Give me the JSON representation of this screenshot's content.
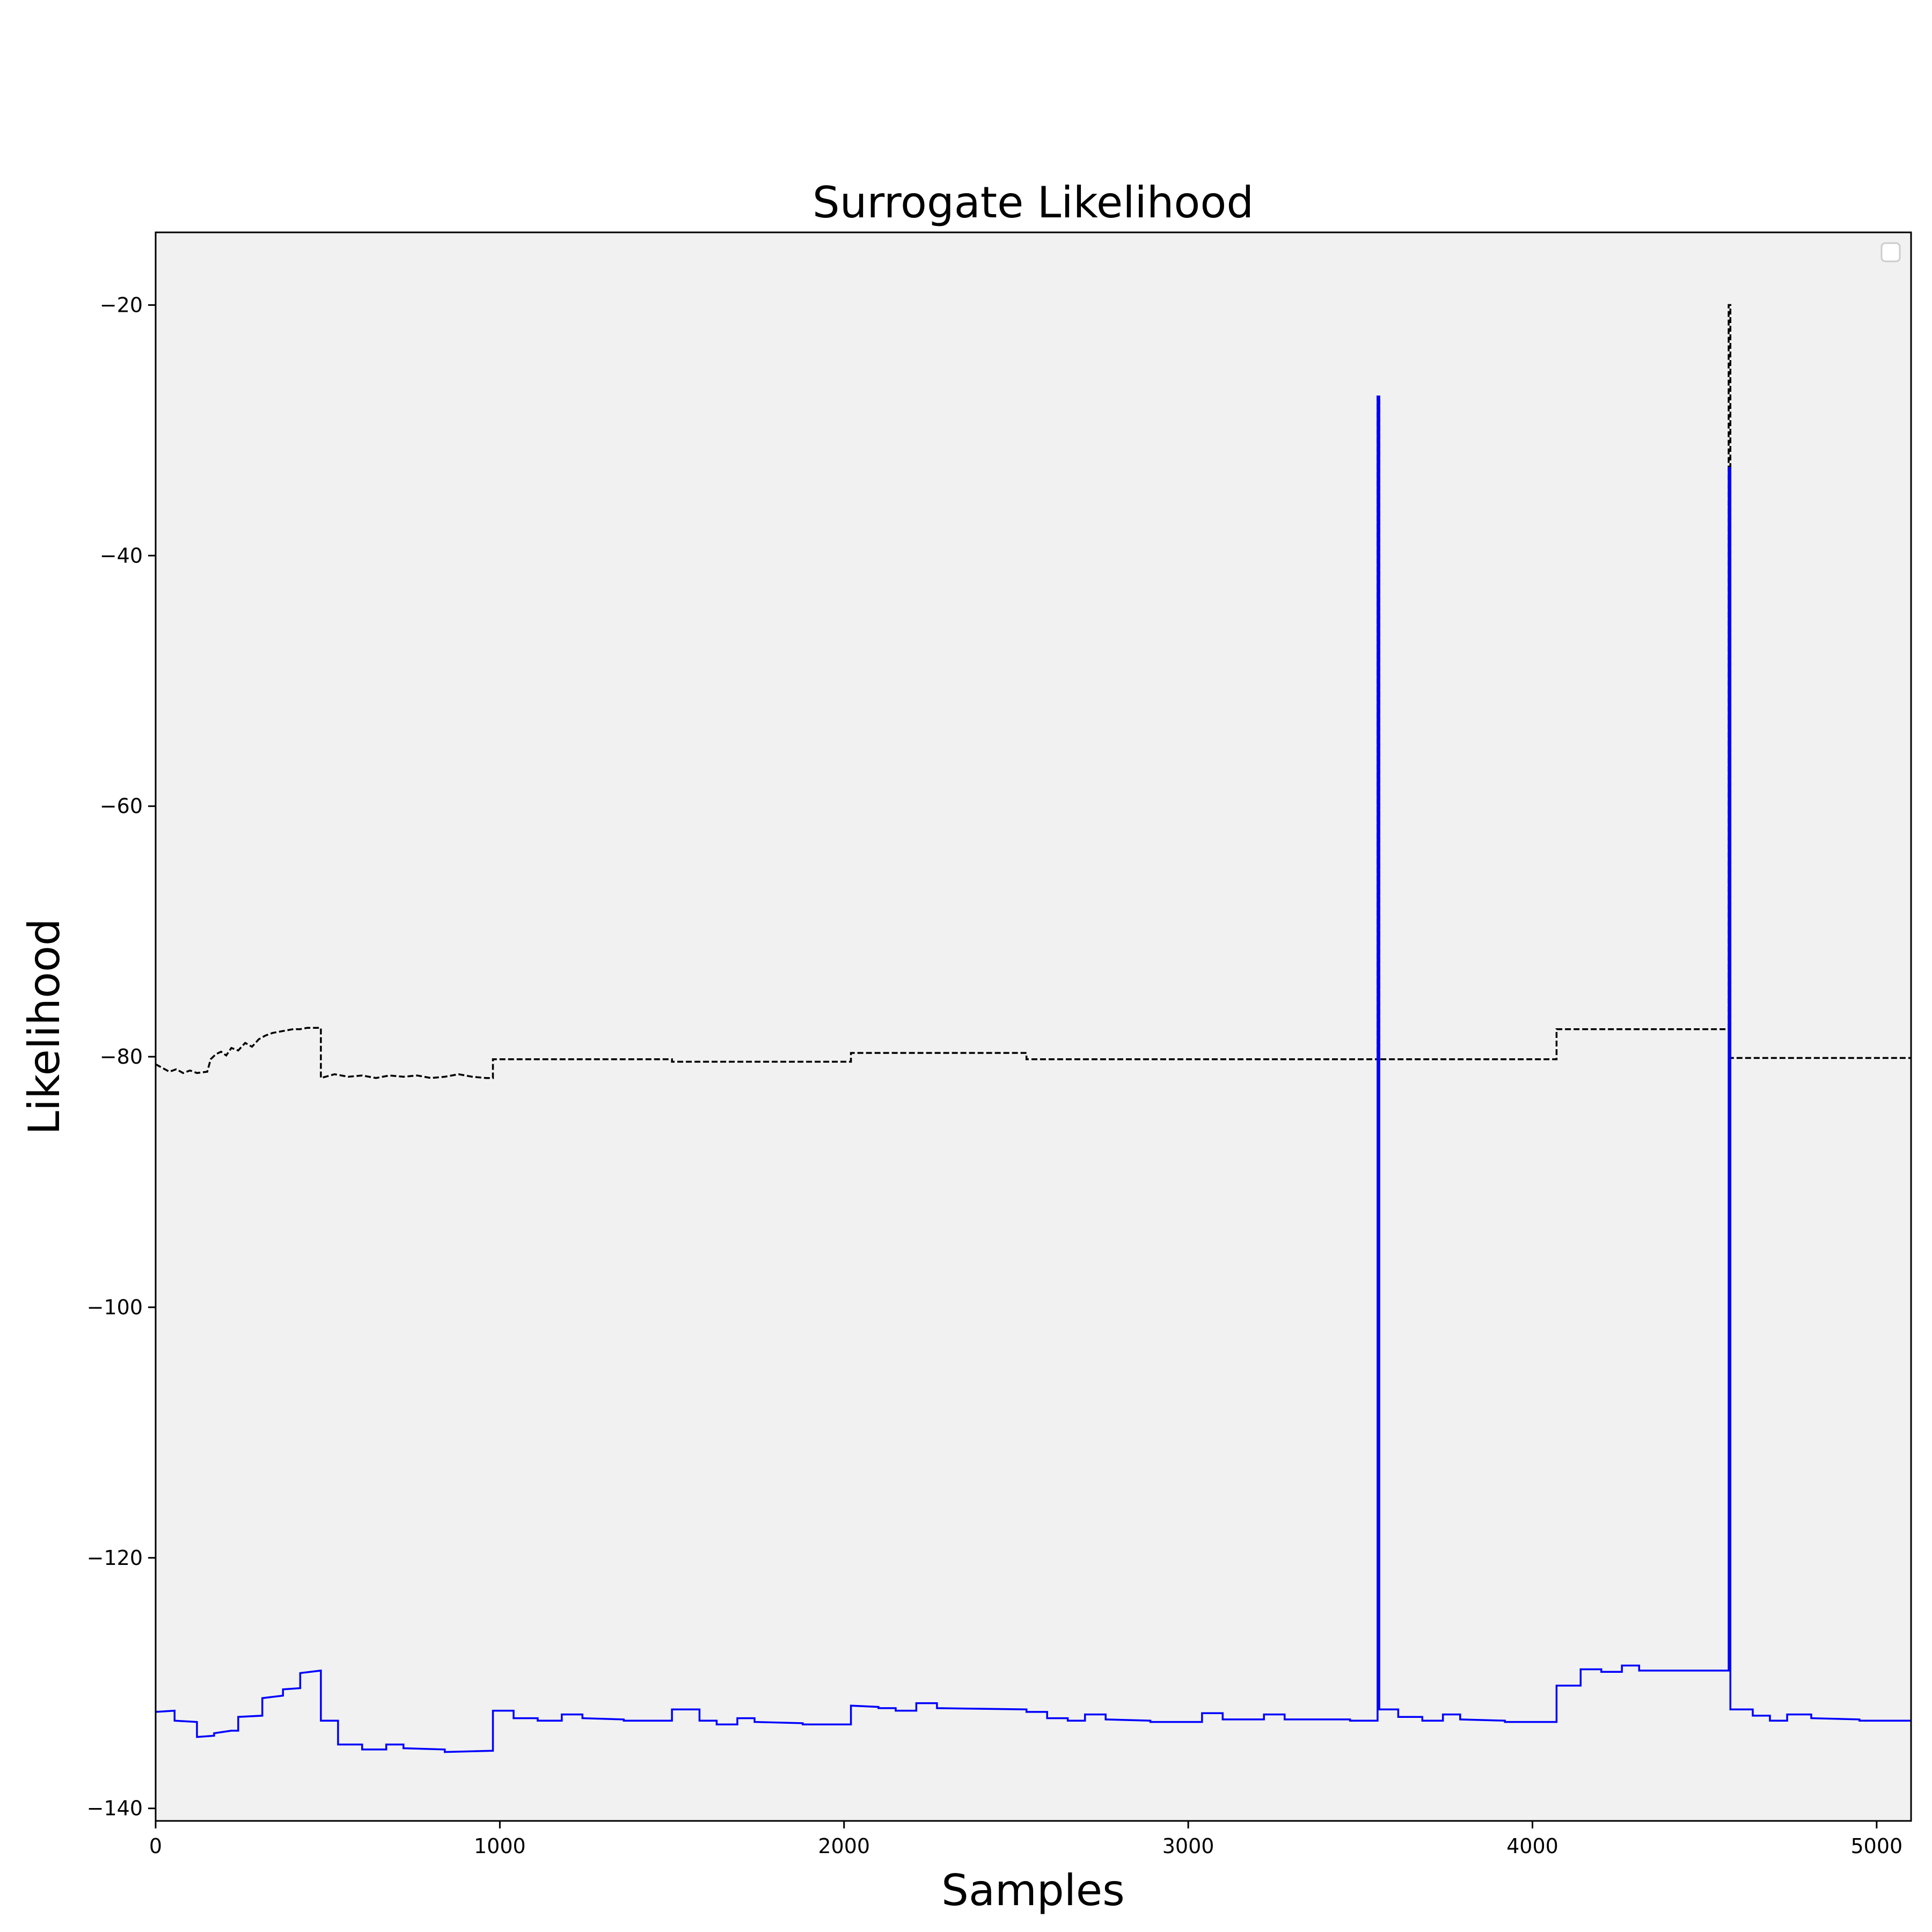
{
  "chart_data": {
    "type": "line",
    "title": "Surrogate  Likelihood",
    "xlabel": "Samples",
    "ylabel": "Likelihood",
    "xlim": [
      0,
      5100
    ],
    "ylim": [
      -141,
      -14.2
    ],
    "x_ticks": [
      0,
      1000,
      2000,
      3000,
      4000,
      5000
    ],
    "x_tick_labels": [
      "0",
      "1000",
      "2000",
      "3000",
      "4000",
      "5000"
    ],
    "y_ticks": [
      -20,
      -40,
      -60,
      -80,
      -100,
      -120,
      -140
    ],
    "y_tick_labels": [
      "−20",
      "−40",
      "−60",
      "−80",
      "−100",
      "−120",
      "−140"
    ],
    "grid": false,
    "legend": {
      "placement": "top-right",
      "entries": []
    },
    "background_color": "#f1f1f1",
    "series": [
      {
        "line_style": "dashed",
        "color": "#000000",
        "step": true,
        "points": [
          [
            0,
            -80.6
          ],
          [
            20,
            -80.9
          ],
          [
            40,
            -81.2
          ],
          [
            60,
            -81.0
          ],
          [
            80,
            -81.3
          ],
          [
            100,
            -81.1
          ],
          [
            120,
            -81.3
          ],
          [
            150,
            -81.2
          ],
          [
            160,
            -80.2
          ],
          [
            175,
            -79.8
          ],
          [
            190,
            -79.6
          ],
          [
            205,
            -79.9
          ],
          [
            220,
            -79.3
          ],
          [
            240,
            -79.5
          ],
          [
            260,
            -78.9
          ],
          [
            280,
            -79.2
          ],
          [
            300,
            -78.6
          ],
          [
            320,
            -78.3
          ],
          [
            340,
            -78.1
          ],
          [
            360,
            -78.0
          ],
          [
            380,
            -77.9
          ],
          [
            400,
            -77.8
          ],
          [
            420,
            -77.8
          ],
          [
            440,
            -77.7
          ],
          [
            460,
            -77.7
          ],
          [
            480,
            -77.7
          ],
          [
            480,
            -81.7
          ],
          [
            520,
            -81.4
          ],
          [
            560,
            -81.6
          ],
          [
            600,
            -81.5
          ],
          [
            640,
            -81.7
          ],
          [
            680,
            -81.5
          ],
          [
            720,
            -81.6
          ],
          [
            760,
            -81.5
          ],
          [
            800,
            -81.7
          ],
          [
            840,
            -81.6
          ],
          [
            880,
            -81.4
          ],
          [
            920,
            -81.6
          ],
          [
            960,
            -81.7
          ],
          [
            980,
            -81.7
          ],
          [
            980,
            -80.2
          ],
          [
            1500,
            -80.2
          ],
          [
            1500,
            -80.4
          ],
          [
            2020,
            -80.4
          ],
          [
            2020,
            -79.7
          ],
          [
            2530,
            -79.7
          ],
          [
            2530,
            -80.2
          ],
          [
            3550,
            -80.2
          ],
          [
            3550,
            -27.3
          ],
          [
            3555,
            -27.3
          ],
          [
            3555,
            -80.2
          ],
          [
            4070,
            -80.2
          ],
          [
            4070,
            -77.8
          ],
          [
            4570,
            -77.8
          ],
          [
            4570,
            -20.0
          ],
          [
            4575,
            -20.0
          ],
          [
            4575,
            -80.1
          ],
          [
            5100,
            -80.1
          ]
        ]
      },
      {
        "line_style": "solid",
        "color": "#0000ff",
        "step": true,
        "points": [
          [
            0,
            -132.3
          ],
          [
            55,
            -132.2
          ],
          [
            55,
            -133.0
          ],
          [
            120,
            -133.1
          ],
          [
            120,
            -134.3
          ],
          [
            170,
            -134.2
          ],
          [
            170,
            -134.0
          ],
          [
            220,
            -133.8
          ],
          [
            240,
            -133.8
          ],
          [
            240,
            -132.7
          ],
          [
            310,
            -132.6
          ],
          [
            310,
            -131.2
          ],
          [
            370,
            -131.0
          ],
          [
            370,
            -130.5
          ],
          [
            420,
            -130.4
          ],
          [
            420,
            -129.2
          ],
          [
            480,
            -129.0
          ],
          [
            480,
            -133.0
          ],
          [
            530,
            -133.0
          ],
          [
            530,
            -134.9
          ],
          [
            600,
            -134.9
          ],
          [
            600,
            -135.3
          ],
          [
            670,
            -135.3
          ],
          [
            670,
            -134.9
          ],
          [
            720,
            -134.9
          ],
          [
            720,
            -135.2
          ],
          [
            840,
            -135.3
          ],
          [
            840,
            -135.5
          ],
          [
            980,
            -135.4
          ],
          [
            980,
            -132.2
          ],
          [
            1040,
            -132.2
          ],
          [
            1040,
            -132.8
          ],
          [
            1110,
            -132.8
          ],
          [
            1110,
            -133.0
          ],
          [
            1180,
            -133.0
          ],
          [
            1180,
            -132.5
          ],
          [
            1240,
            -132.5
          ],
          [
            1240,
            -132.8
          ],
          [
            1360,
            -132.9
          ],
          [
            1360,
            -133.0
          ],
          [
            1500,
            -133.0
          ],
          [
            1500,
            -132.1
          ],
          [
            1580,
            -132.1
          ],
          [
            1580,
            -133.0
          ],
          [
            1630,
            -133.0
          ],
          [
            1630,
            -133.3
          ],
          [
            1690,
            -133.3
          ],
          [
            1690,
            -132.8
          ],
          [
            1740,
            -132.8
          ],
          [
            1740,
            -133.1
          ],
          [
            1880,
            -133.2
          ],
          [
            1880,
            -133.3
          ],
          [
            2020,
            -133.3
          ],
          [
            2020,
            -131.8
          ],
          [
            2100,
            -131.9
          ],
          [
            2100,
            -132.0
          ],
          [
            2150,
            -132.0
          ],
          [
            2150,
            -132.2
          ],
          [
            2210,
            -132.2
          ],
          [
            2210,
            -131.6
          ],
          [
            2270,
            -131.6
          ],
          [
            2270,
            -132.0
          ],
          [
            2530,
            -132.1
          ],
          [
            2530,
            -132.3
          ],
          [
            2590,
            -132.3
          ],
          [
            2590,
            -132.8
          ],
          [
            2650,
            -132.8
          ],
          [
            2650,
            -133.0
          ],
          [
            2700,
            -133.0
          ],
          [
            2700,
            -132.5
          ],
          [
            2760,
            -132.5
          ],
          [
            2760,
            -132.9
          ],
          [
            2890,
            -133.0
          ],
          [
            2890,
            -133.1
          ],
          [
            3040,
            -133.1
          ],
          [
            3040,
            -132.4
          ],
          [
            3100,
            -132.4
          ],
          [
            3100,
            -132.9
          ],
          [
            3220,
            -132.9
          ],
          [
            3220,
            -132.5
          ],
          [
            3280,
            -132.5
          ],
          [
            3280,
            -132.9
          ],
          [
            3470,
            -132.9
          ],
          [
            3470,
            -133.0
          ],
          [
            3550,
            -133.0
          ],
          [
            3550,
            -27.3
          ],
          [
            3555,
            -27.3
          ],
          [
            3555,
            -132.1
          ],
          [
            3610,
            -132.1
          ],
          [
            3610,
            -132.7
          ],
          [
            3680,
            -132.7
          ],
          [
            3680,
            -133.0
          ],
          [
            3740,
            -133.0
          ],
          [
            3740,
            -132.5
          ],
          [
            3790,
            -132.5
          ],
          [
            3790,
            -132.9
          ],
          [
            3920,
            -133.0
          ],
          [
            3920,
            -133.1
          ],
          [
            4070,
            -133.1
          ],
          [
            4070,
            -130.2
          ],
          [
            4140,
            -130.2
          ],
          [
            4140,
            -128.9
          ],
          [
            4200,
            -128.9
          ],
          [
            4200,
            -129.1
          ],
          [
            4260,
            -129.1
          ],
          [
            4260,
            -128.6
          ],
          [
            4310,
            -128.6
          ],
          [
            4310,
            -129.0
          ],
          [
            4570,
            -129.0
          ],
          [
            4570,
            -33.0
          ],
          [
            4575,
            -33.0
          ],
          [
            4575,
            -132.1
          ],
          [
            4640,
            -132.1
          ],
          [
            4640,
            -132.6
          ],
          [
            4690,
            -132.6
          ],
          [
            4690,
            -133.0
          ],
          [
            4740,
            -133.0
          ],
          [
            4740,
            -132.5
          ],
          [
            4810,
            -132.5
          ],
          [
            4810,
            -132.8
          ],
          [
            4950,
            -132.9
          ],
          [
            4950,
            -133.0
          ],
          [
            5100,
            -133.0
          ]
        ]
      }
    ]
  }
}
